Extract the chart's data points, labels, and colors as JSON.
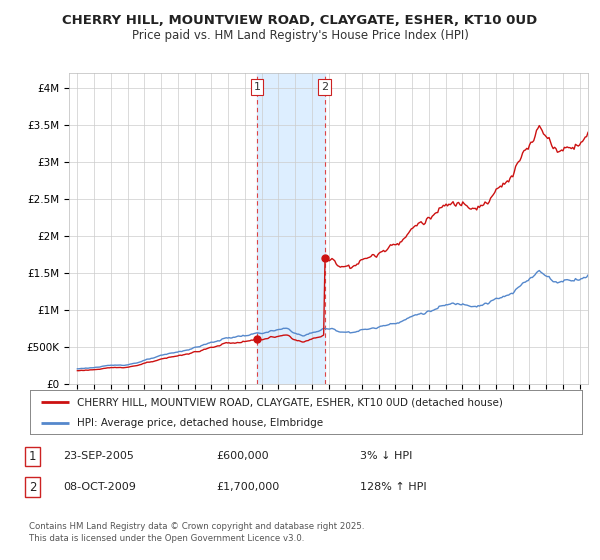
{
  "title1": "CHERRY HILL, MOUNTVIEW ROAD, CLAYGATE, ESHER, KT10 0UD",
  "title2": "Price paid vs. HM Land Registry's House Price Index (HPI)",
  "bg_color": "#ffffff",
  "grid_color": "#cccccc",
  "plot_bg_color": "#ffffff",
  "hpi_line_color": "#5588cc",
  "price_line_color": "#cc1111",
  "sale1_date": 2005.73,
  "sale1_price": 600000,
  "sale2_date": 2009.77,
  "sale2_price": 1700000,
  "sale1_label": "1",
  "sale2_label": "2",
  "vline_color": "#dd4444",
  "highlight_color": "#ddeeff",
  "legend_label1": "CHERRY HILL, MOUNTVIEW ROAD, CLAYGATE, ESHER, KT10 0UD (detached house)",
  "legend_label2": "HPI: Average price, detached house, Elmbridge",
  "note1_label": "1",
  "note1_date": "23-SEP-2005",
  "note1_price": "£600,000",
  "note1_hpi": "3% ↓ HPI",
  "note2_label": "2",
  "note2_date": "08-OCT-2009",
  "note2_price": "£1,700,000",
  "note2_hpi": "128% ↑ HPI",
  "footer": "Contains HM Land Registry data © Crown copyright and database right 2025.\nThis data is licensed under the Open Government Licence v3.0.",
  "ylim_max": 4200000,
  "ylim_min": 0,
  "xlim_min": 1994.5,
  "xlim_max": 2025.5
}
